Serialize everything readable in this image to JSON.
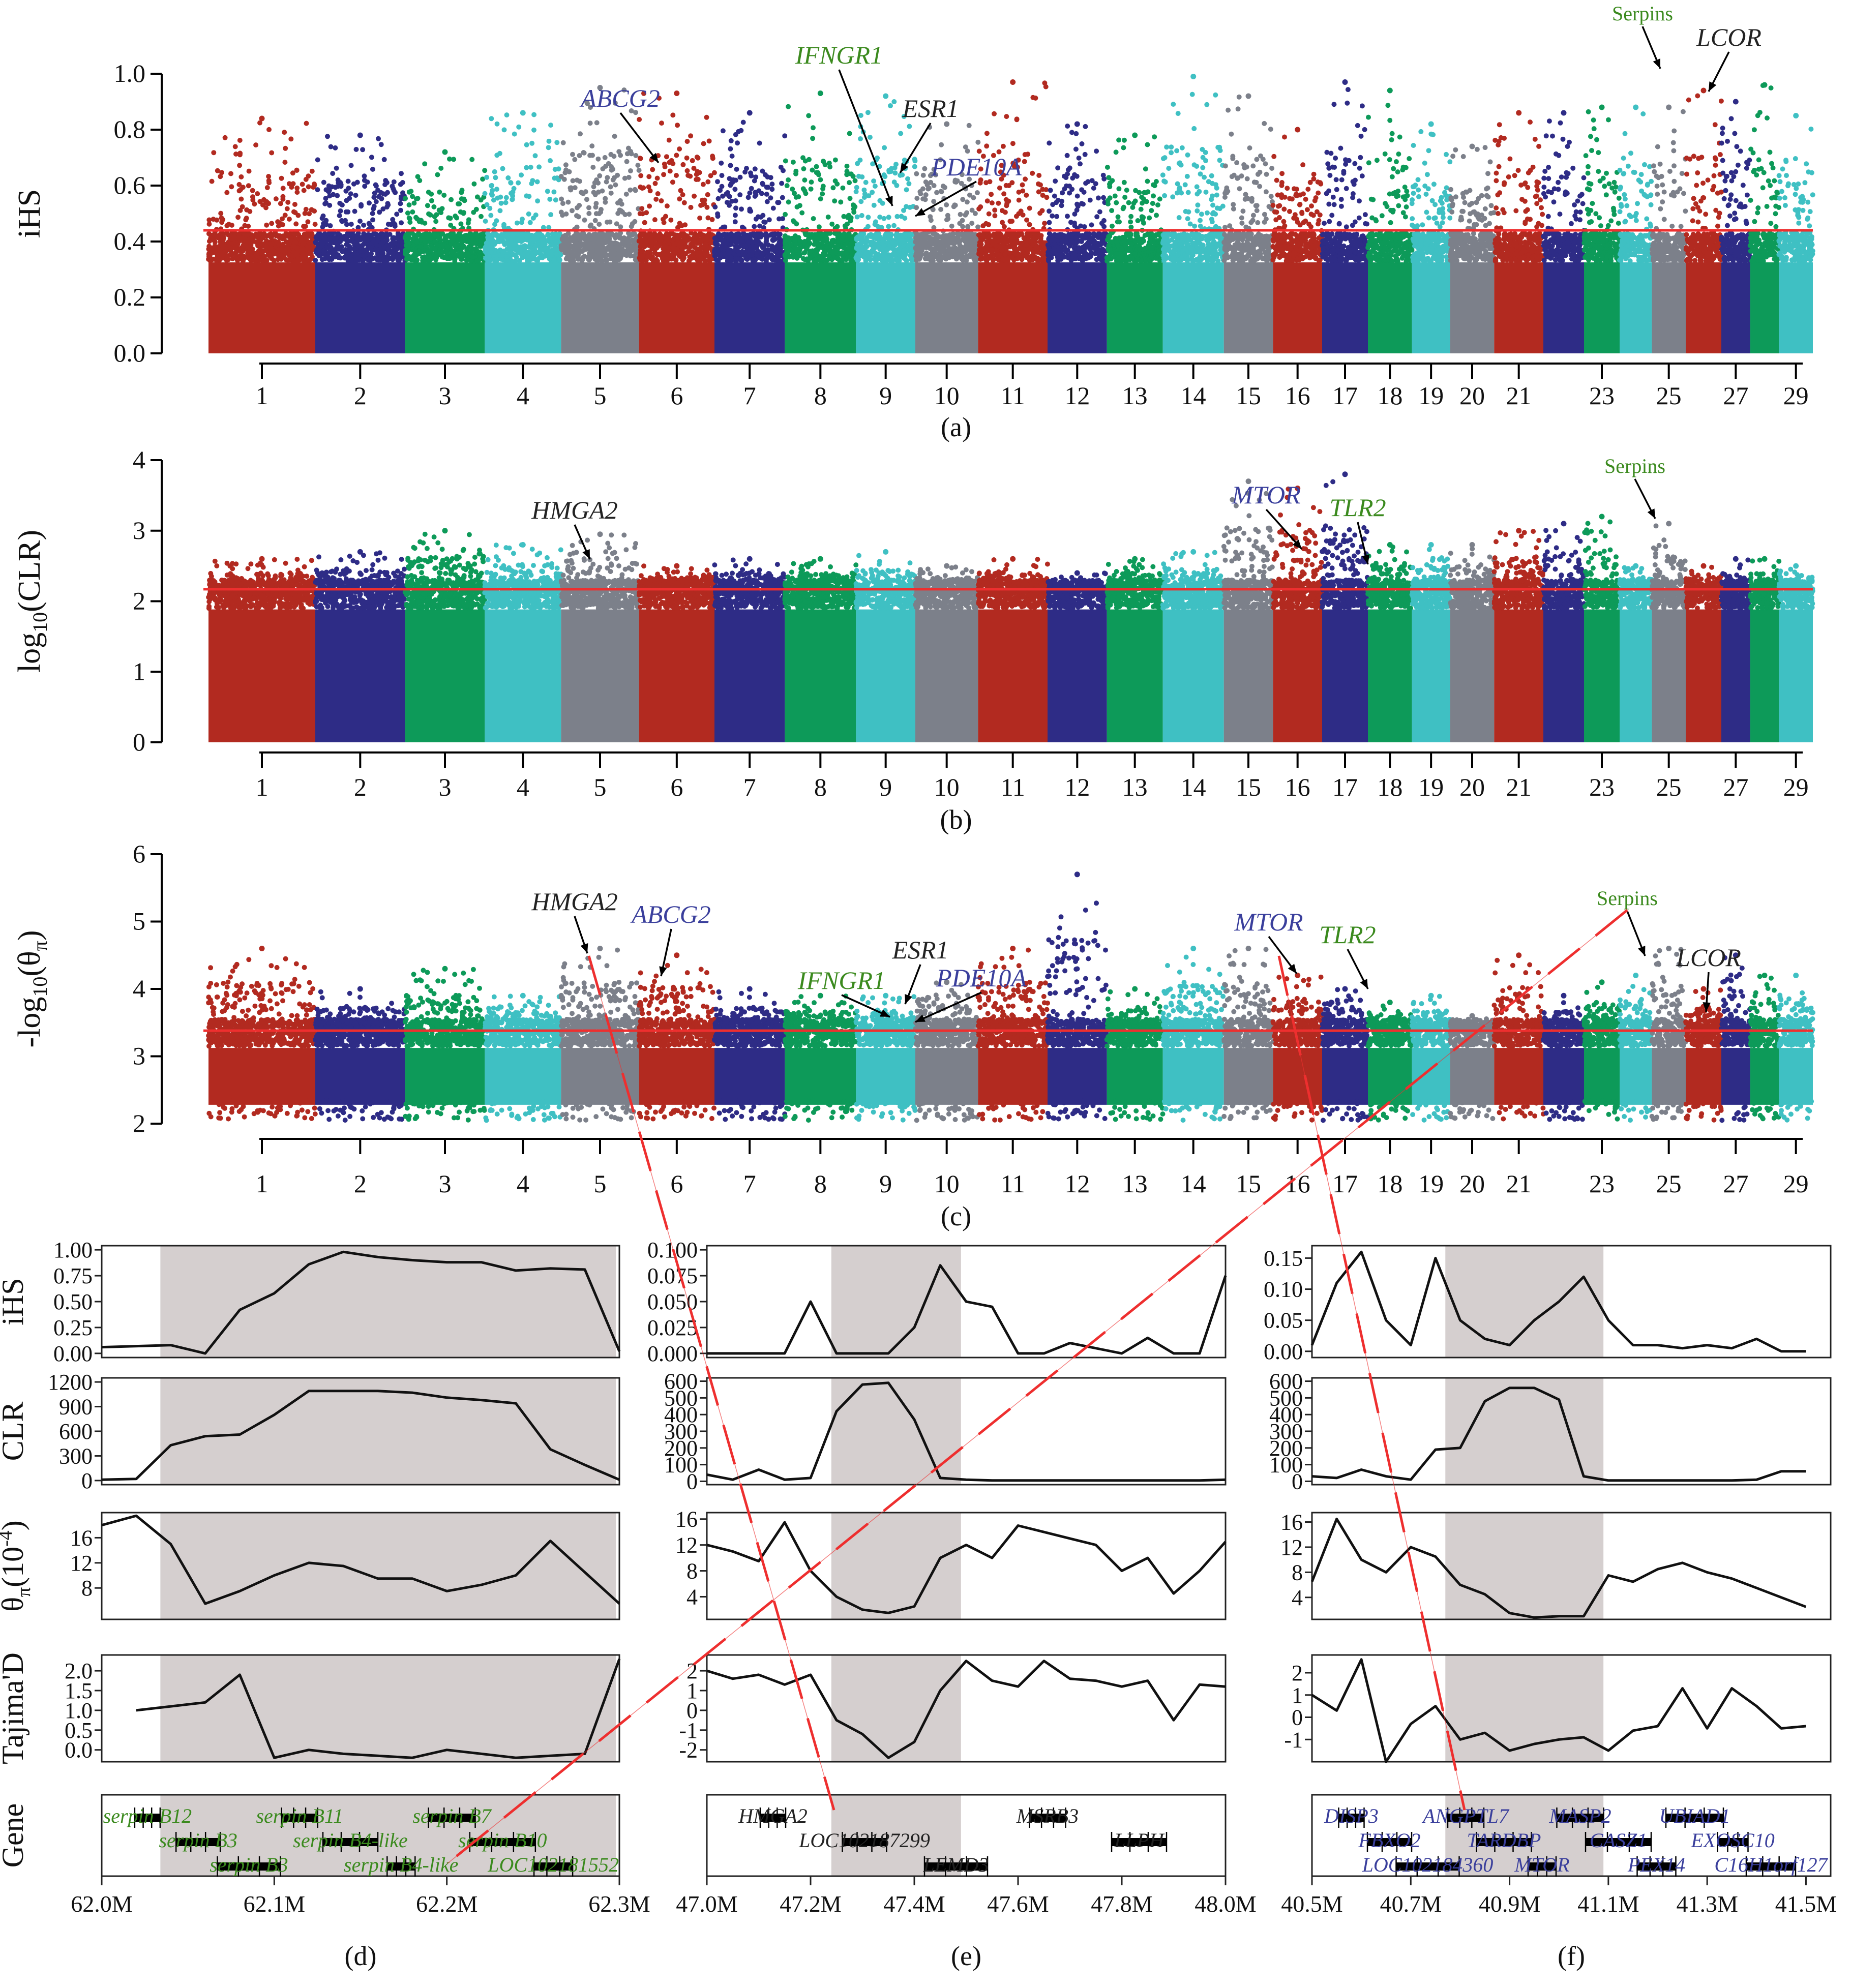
{
  "colors": {
    "chrom_palette": [
      "#b22a20",
      "#2e2c86",
      "#0d9a59",
      "#3fc0c3",
      "#7c808a"
    ],
    "threshold_line": "#ee2f2f",
    "region_shade": "#d5cfcf",
    "gene_label_green": "#3b8a1e",
    "gene_label_blue": "#3a3f9c",
    "gene_label_black": "#222222"
  },
  "manhattan": {
    "chrom_tick_labels": [
      "1",
      "2",
      "3",
      "4",
      "5",
      "6",
      "7",
      "8",
      "9",
      "10",
      "11",
      "12",
      "13",
      "14",
      "15",
      "16",
      "17",
      "18",
      "19",
      "20",
      "21",
      "23",
      "25",
      "27",
      "29"
    ],
    "panels": [
      {
        "id": "a",
        "ylabel_text": "iHS",
        "yticks": [
          "0.0",
          "0.2",
          "0.4",
          "0.6",
          "0.8",
          "1.0"
        ],
        "caption": "(a)",
        "ylim": [
          0,
          1.0
        ],
        "threshold": 0.44,
        "annotations": [
          {
            "label": "ABCG2",
            "color": "blue"
          },
          {
            "label": "IFNGR1",
            "color": "green"
          },
          {
            "label": "ESR1",
            "color": "black"
          },
          {
            "label": "PDE10A",
            "color": "blue"
          },
          {
            "label": "Serpins",
            "color": "green"
          },
          {
            "label": "LCOR",
            "color": "black"
          }
        ]
      },
      {
        "id": "b",
        "ylabel_main": "log",
        "ylabel_sub": "10",
        "ylabel_rest": "(CLR)",
        "yticks": [
          "0",
          "1",
          "2",
          "3",
          "4"
        ],
        "caption": "(b)",
        "ylim": [
          0,
          4
        ],
        "threshold": 2.17,
        "annotations": [
          {
            "label": "HMGA2",
            "color": "black"
          },
          {
            "label": "MTOR",
            "color": "blue"
          },
          {
            "label": "TLR2",
            "color": "green"
          },
          {
            "label": "Serpins",
            "color": "green"
          }
        ]
      },
      {
        "id": "c",
        "ylabel_main": "-log",
        "ylabel_sub": "10",
        "ylabel_rest": "(θ",
        "ylabel_sub2": "π",
        "ylabel_close": ")",
        "yticks": [
          "2",
          "3",
          "4",
          "5",
          "6"
        ],
        "caption": "(c)",
        "ylim": [
          2,
          6
        ],
        "threshold": 3.38,
        "annotations": [
          {
            "label": "HMGA2",
            "color": "black"
          },
          {
            "label": "ABCG2",
            "color": "blue"
          },
          {
            "label": "ESR1",
            "color": "black"
          },
          {
            "label": "IFNGR1",
            "color": "green"
          },
          {
            "label": "PDE10A",
            "color": "blue"
          },
          {
            "label": "MTOR",
            "color": "blue"
          },
          {
            "label": "TLR2",
            "color": "green"
          },
          {
            "label": "Serpins",
            "color": "green"
          },
          {
            "label": "LCOR",
            "color": "black"
          }
        ]
      }
    ]
  },
  "regions": {
    "row_labels": {
      "ihs": "iHS",
      "clr": "CLR",
      "theta_main": "θ",
      "theta_sub": "π",
      "theta_rest": "(10",
      "theta_sup": "-4",
      "theta_close": ")",
      "tajima": "Tajima'D",
      "gene": "Gene"
    },
    "columns": [
      {
        "id": "d",
        "caption": "(d)",
        "xticks": [
          "62.0M",
          "62.1M",
          "62.2M",
          "62.3M"
        ],
        "gene_color": "green",
        "genes": [
          "serpin B12",
          "serpin B3",
          "serpin B3",
          "serpin B11",
          "serpin B4-like",
          "serpin B4-like",
          "serpin B7",
          "serpin B10",
          "LOC102181552"
        ]
      },
      {
        "id": "e",
        "caption": "(e)",
        "xticks": [
          "47.0M",
          "47.2M",
          "47.4M",
          "47.6M",
          "47.8M",
          "48.0M"
        ],
        "gene_color": "black",
        "genes": [
          "HMGA2",
          "LOC102187299",
          "LEMD3",
          "MSRB3",
          "LLPH"
        ]
      },
      {
        "id": "f",
        "caption": "(f)",
        "xticks": [
          "40.5M",
          "40.7M",
          "40.9M",
          "41.1M",
          "41.3M",
          "41.5M"
        ],
        "gene_color": "blue",
        "genes": [
          "DISP3",
          "FBXO2",
          "LOC102184360",
          "ANGPTL7",
          "TARDBP",
          "MTOR",
          "MASP2",
          "CASZ1",
          "PEX14",
          "UBIAD1",
          "EXOSC10",
          "C16H1orf127"
        ]
      }
    ],
    "ytick_labels": {
      "d": {
        "ihs": [
          "0.00",
          "0.25",
          "0.50",
          "0.75",
          "1.00"
        ],
        "clr": [
          "0",
          "300",
          "600",
          "900",
          "1200"
        ],
        "theta": [
          "8",
          "12",
          "16"
        ],
        "tajima": [
          "0.0",
          "0.5",
          "1.0",
          "1.5",
          "2.0"
        ]
      },
      "e": {
        "ihs": [
          "0.000",
          "0.025",
          "0.050",
          "0.075",
          "0.100"
        ],
        "clr": [
          "0",
          "100",
          "200",
          "300",
          "400",
          "500",
          "600"
        ],
        "theta": [
          "4",
          "8",
          "12",
          "16"
        ],
        "tajima": [
          "-2",
          "-1",
          "0",
          "1",
          "2"
        ]
      },
      "f": {
        "ihs": [
          "0.00",
          "0.05",
          "0.10",
          "0.15"
        ],
        "clr": [
          "0",
          "100",
          "200",
          "300",
          "400",
          "500",
          "600"
        ],
        "theta": [
          "4",
          "8",
          "12",
          "16"
        ],
        "tajima": [
          "-1",
          "0",
          "1",
          "2"
        ]
      }
    }
  },
  "chart_data": [
    {
      "type": "scatter",
      "panel": "a",
      "ylabel": "iHS",
      "ylim": [
        0,
        1.0
      ],
      "threshold": 0.44,
      "chromosome_peaks": [
        0.84,
        0.78,
        0.72,
        0.86,
        0.95,
        0.93,
        0.86,
        0.93,
        0.92,
        0.82,
        0.97,
        0.82,
        0.78,
        0.99,
        0.92,
        0.8,
        0.97,
        0.94,
        0.82,
        0.74,
        0.86,
        0.86,
        0.88,
        0.88,
        0.88,
        0.94,
        0.9,
        0.96,
        0.85
      ]
    },
    {
      "type": "scatter",
      "panel": "b",
      "ylabel": "log10(CLR)",
      "ylim": [
        0,
        4
      ],
      "threshold": 2.17,
      "chromosome_peaks": [
        2.6,
        2.7,
        3.0,
        2.8,
        2.95,
        2.5,
        2.6,
        2.6,
        2.7,
        2.5,
        2.6,
        2.4,
        2.6,
        2.7,
        3.7,
        3.6,
        3.8,
        2.8,
        2.8,
        2.8,
        3.0,
        3.1,
        3.2,
        2.5,
        3.1,
        2.5,
        2.6,
        2.6,
        2.5
      ]
    },
    {
      "type": "scatter",
      "panel": "c",
      "ylabel": "-log10(θπ)",
      "ylim": [
        2,
        6
      ],
      "threshold": 3.38,
      "chromosome_peaks": [
        4.6,
        4.0,
        4.3,
        3.9,
        4.6,
        4.5,
        4.0,
        3.9,
        3.9,
        4.1,
        4.6,
        5.7,
        4.0,
        4.6,
        4.6,
        4.2,
        4.0,
        3.8,
        3.9,
        3.6,
        4.5,
        3.9,
        4.1,
        4.2,
        4.6,
        4.0,
        4.5,
        4.2,
        4.2
      ]
    },
    {
      "type": "line",
      "panel": "d",
      "x": [
        62.0,
        62.02,
        62.04,
        62.06,
        62.08,
        62.1,
        62.12,
        62.14,
        62.16,
        62.18,
        62.2,
        62.22,
        62.24,
        62.26,
        62.28,
        62.3
      ],
      "shaded_region": [
        62.034,
        62.298
      ],
      "ihs": [
        0.06,
        0.07,
        0.08,
        0.0,
        0.42,
        0.58,
        0.86,
        0.98,
        0.93,
        0.9,
        0.88,
        0.88,
        0.8,
        0.82,
        0.81,
        0.02
      ],
      "clr": [
        10,
        20,
        430,
        540,
        560,
        800,
        1090,
        1090,
        1090,
        1070,
        1010,
        980,
        940,
        380,
        190,
        10
      ],
      "theta": [
        18,
        19.5,
        15,
        5.5,
        7.5,
        10,
        12,
        11.5,
        9.5,
        9.5,
        7.5,
        8.5,
        10,
        15.5,
        10.5,
        5.5
      ],
      "tajima": [
        null,
        1.0,
        1.1,
        1.2,
        1.9,
        -0.2,
        0.0,
        -0.1,
        -0.15,
        -0.2,
        0.0,
        -0.1,
        -0.2,
        -0.15,
        -0.1,
        2.3
      ]
    },
    {
      "type": "line",
      "panel": "e",
      "x": [
        47.0,
        47.05,
        47.1,
        47.15,
        47.2,
        47.25,
        47.3,
        47.35,
        47.4,
        47.45,
        47.5,
        47.55,
        47.6,
        47.65,
        47.7,
        47.75,
        47.8,
        47.85,
        47.9,
        47.95,
        48.0
      ],
      "shaded_region": [
        47.24,
        47.49
      ],
      "ihs": [
        0.0,
        0.0,
        0.0,
        0.0,
        0.05,
        0.0,
        0.0,
        0.0,
        0.025,
        0.085,
        0.05,
        0.045,
        0.0,
        0.0,
        0.01,
        0.005,
        0.0,
        0.015,
        0.0,
        0.0,
        0.075
      ],
      "clr": [
        40,
        10,
        70,
        10,
        20,
        420,
        580,
        590,
        370,
        20,
        10,
        5,
        5,
        5,
        5,
        5,
        5,
        5,
        5,
        5,
        10
      ],
      "theta": [
        12,
        11,
        9.5,
        15.5,
        8,
        4,
        2,
        1.5,
        2.5,
        10,
        12,
        10,
        15,
        14,
        13,
        12,
        8,
        10,
        4.5,
        8,
        12.5
      ],
      "tajima": [
        2.0,
        1.6,
        1.8,
        1.3,
        1.8,
        -0.5,
        -1.2,
        -2.4,
        -1.6,
        1.0,
        2.5,
        1.5,
        1.2,
        2.5,
        1.6,
        1.5,
        1.2,
        1.5,
        -0.5,
        1.3,
        1.2
      ]
    },
    {
      "type": "line",
      "panel": "f",
      "x": [
        40.5,
        40.55,
        40.6,
        40.65,
        40.7,
        40.75,
        40.8,
        40.85,
        40.9,
        40.95,
        41.0,
        41.05,
        41.1,
        41.15,
        41.2,
        41.25,
        41.3,
        41.35,
        41.4,
        41.45,
        41.5
      ],
      "shaded_region": [
        40.77,
        41.09
      ],
      "ihs": [
        0.01,
        0.11,
        0.16,
        0.05,
        0.01,
        0.15,
        0.05,
        0.02,
        0.01,
        0.05,
        0.08,
        0.12,
        0.05,
        0.01,
        0.01,
        0.005,
        0.01,
        0.005,
        0.02,
        0.0,
        0.0
      ],
      "clr": [
        30,
        20,
        70,
        30,
        10,
        190,
        200,
        480,
        560,
        560,
        490,
        30,
        5,
        5,
        5,
        5,
        5,
        5,
        10,
        60,
        60
      ],
      "theta": [
        6.5,
        16.5,
        10,
        8,
        12,
        10.5,
        6,
        4.5,
        1.5,
        0.8,
        1.0,
        1.0,
        7.5,
        6.5,
        8.5,
        9.5,
        8,
        7,
        5.5,
        4,
        2.5
      ],
      "tajima": [
        1.0,
        0.3,
        2.6,
        -2.0,
        -0.3,
        0.5,
        -1.0,
        -0.7,
        -1.5,
        -1.2,
        -1.0,
        -0.9,
        -1.5,
        -0.6,
        -0.4,
        1.3,
        -0.5,
        1.3,
        0.5,
        -0.5,
        -0.4
      ]
    }
  ]
}
